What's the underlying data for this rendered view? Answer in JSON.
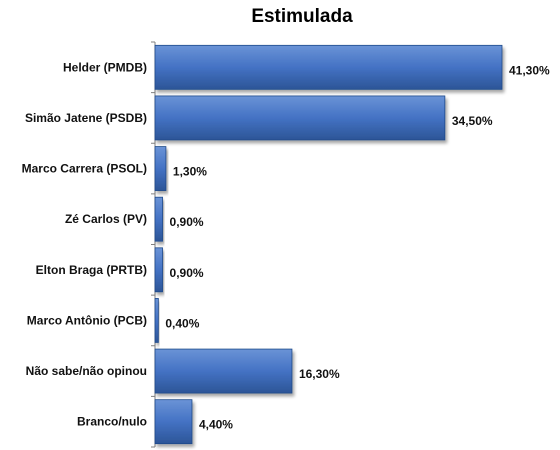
{
  "chart_data": {
    "type": "bar",
    "orientation": "horizontal",
    "title": "Estimulada",
    "categories": [
      "Helder (PMDB)",
      "Simão Jatene (PSDB)",
      "Marco Carrera (PSOL)",
      "Zé Carlos (PV)",
      "Elton Braga (PRTB)",
      "Marco Antônio (PCB)",
      "Não sabe/não opinou",
      "Branco/nulo"
    ],
    "values": [
      41.3,
      34.5,
      1.3,
      0.9,
      0.9,
      0.4,
      16.3,
      4.4
    ],
    "value_labels": [
      "41,30%",
      "34,50%",
      "1,30%",
      "0,90%",
      "0,90%",
      "0,40%",
      "16,30%",
      "4,40%"
    ],
    "xlabel": "",
    "ylabel": "",
    "xlim": [
      0,
      41.3
    ],
    "grid": false,
    "legend": "none",
    "colors": {
      "bar_fill": "#4472C4",
      "bar_light": "#6A93D6",
      "bar_dark": "#2C5597",
      "bar_edge": "#1F4A8A",
      "axis": "#808080",
      "text": "#111111"
    }
  }
}
